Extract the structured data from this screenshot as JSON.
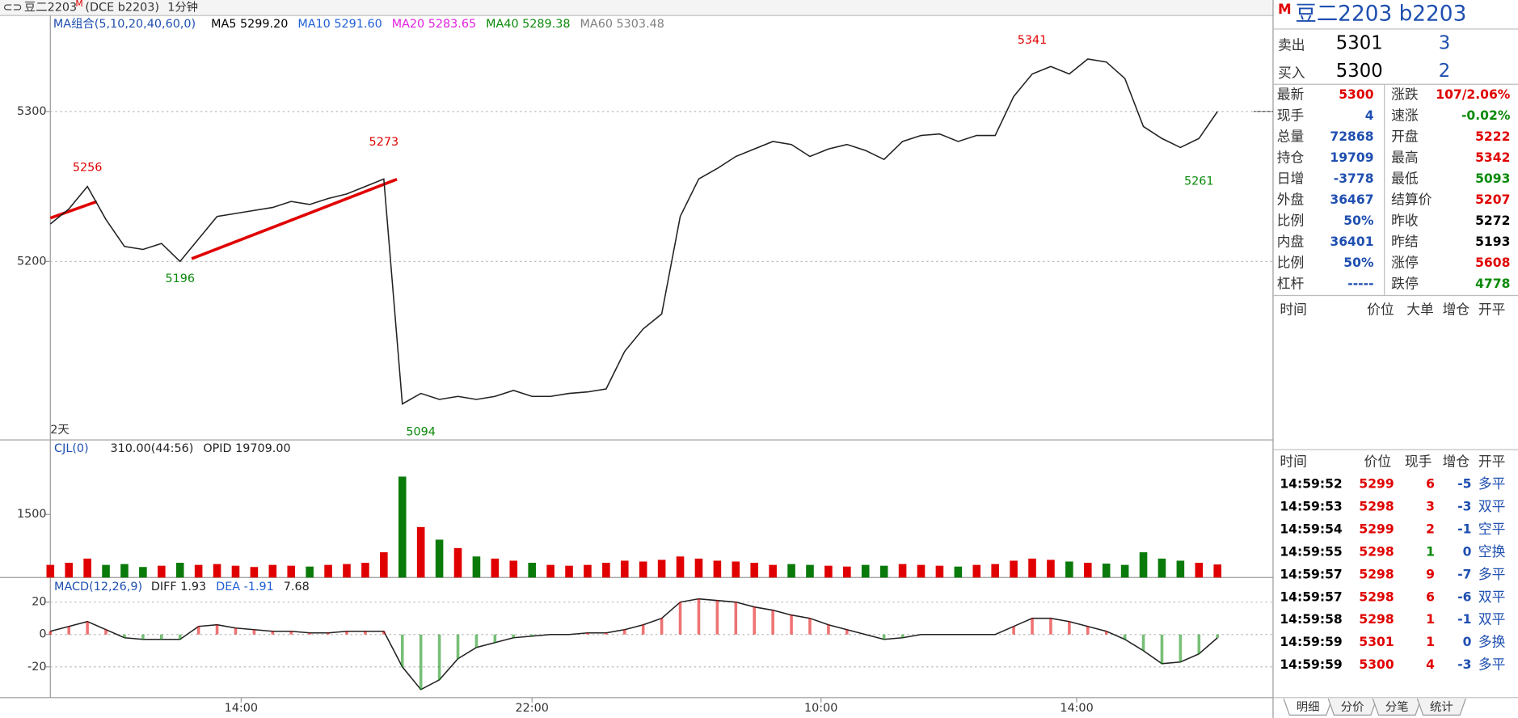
{
  "header": {
    "title": "豆二2203",
    "marker": "M",
    "exchange": "(DCE b2203)",
    "period": "1分钟"
  },
  "ma_legend": {
    "name": "MA组合(5,10,20,40,60,0)",
    "items": [
      {
        "text": "MA5 5299.20",
        "color": "#000000"
      },
      {
        "text": "MA10 5291.60",
        "color": "#1f5fd6"
      },
      {
        "text": "MA20 5283.65",
        "color": "#e020e0"
      },
      {
        "text": "MA40 5289.38",
        "color": "#0a8a0a"
      },
      {
        "text": "MA60 5303.48",
        "color": "#808080"
      }
    ]
  },
  "days_label": "2天",
  "chart_data": [
    {
      "type": "line",
      "name": "price",
      "color": "#222222",
      "xlim": [
        0,
        66
      ],
      "ylim": [
        5081,
        5364
      ],
      "yticks": [
        5200,
        5300
      ],
      "grid": true,
      "xticks": [
        {
          "value": 10.3,
          "label": "14:00"
        },
        {
          "value": 26,
          "label": "22:00"
        },
        {
          "value": 41.6,
          "label": "10:00"
        },
        {
          "value": 55.4,
          "label": "14:00"
        }
      ],
      "values": [
        5225,
        5235,
        5250,
        5228,
        5210,
        5208,
        5212,
        5200,
        5215,
        5230,
        5232,
        5234,
        5236,
        5240,
        5238,
        5242,
        5245,
        5250,
        5255,
        5105,
        5112,
        5108,
        5110,
        5108,
        5110,
        5114,
        5110,
        5110,
        5112,
        5113,
        5115,
        5140,
        5155,
        5165,
        5230,
        5255,
        5262,
        5270,
        5275,
        5280,
        5278,
        5270,
        5275,
        5278,
        5274,
        5268,
        5280,
        5284,
        5285,
        5280,
        5284,
        5284,
        5310,
        5325,
        5330,
        5325,
        5335,
        5333,
        5322,
        5290,
        5282,
        5276,
        5282,
        5300
      ],
      "annotations": [
        {
          "x": 2,
          "value": 5256,
          "pos": "above",
          "color": "#e00000"
        },
        {
          "x": 7,
          "value": 5196,
          "pos": "below",
          "color": "#0a8a0a"
        },
        {
          "x": 18,
          "value": 5273,
          "pos": "above",
          "color": "#e00000"
        },
        {
          "x": 20,
          "value": 5094,
          "pos": "below",
          "color": "#0a8a0a"
        },
        {
          "x": 53,
          "value": 5341,
          "pos": "above",
          "color": "#e00000"
        },
        {
          "x": 62,
          "value": 5261,
          "pos": "below",
          "color": "#0a8a0a"
        }
      ]
    },
    {
      "type": "bar",
      "name": "CJL(0)",
      "legend": [
        "310.00(44:56)",
        "OPID 19709.00"
      ],
      "xlim": [
        0,
        66
      ],
      "ylim": [
        0,
        3250
      ],
      "yticks": [
        1500
      ],
      "up_color": "#e00000",
      "down_color": "#0a7a0a",
      "values": [
        300,
        350,
        450,
        300,
        320,
        250,
        280,
        350,
        300,
        320,
        280,
        250,
        300,
        280,
        260,
        300,
        320,
        350,
        600,
        2400,
        1200,
        900,
        700,
        500,
        450,
        400,
        350,
        300,
        280,
        300,
        350,
        400,
        380,
        420,
        500,
        450,
        400,
        380,
        350,
        300,
        320,
        300,
        280,
        260,
        300,
        280,
        320,
        300,
        280,
        260,
        300,
        320,
        400,
        450,
        420,
        380,
        350,
        330,
        300,
        600,
        450,
        400,
        350,
        310
      ]
    },
    {
      "type": "line",
      "name": "MACD(12,26,9)",
      "legend": [
        "DIFF 1.93",
        "DEA -1.91",
        "7.68"
      ],
      "color": "#222222",
      "xlim": [
        0,
        66
      ],
      "ylim": [
        -39,
        34
      ],
      "yticks": [
        20,
        0,
        -20
      ],
      "grid": true,
      "values": [
        2,
        5,
        8,
        3,
        -2,
        -3,
        -3,
        -3,
        5,
        6,
        4,
        3,
        2,
        2,
        1,
        1,
        2,
        2,
        2,
        -20,
        -34,
        -28,
        -15,
        -8,
        -5,
        -2,
        -1,
        0,
        0,
        1,
        1,
        3,
        6,
        10,
        20,
        22,
        21,
        20,
        17,
        15,
        12,
        10,
        6,
        3,
        0,
        -3,
        -2,
        0,
        0,
        0,
        0,
        0,
        5,
        10,
        10,
        8,
        5,
        2,
        -3,
        -10,
        -18,
        -17,
        -12,
        -2
      ]
    }
  ],
  "panel": {
    "title": "豆二2203  b2203",
    "marker": "M",
    "orders": [
      {
        "label": "卖出",
        "price": "5301",
        "qty": "3"
      },
      {
        "label": "买入",
        "price": "5300",
        "qty": "2"
      }
    ],
    "quotes": [
      [
        {
          "label": "最新",
          "value": "5300",
          "color": "#e00000"
        },
        {
          "label": "涨跌",
          "value": "107/2.06%",
          "color": "#e00000"
        }
      ],
      [
        {
          "label": "现手",
          "value": "4",
          "color": "#1f4fb0"
        },
        {
          "label": "速涨",
          "value": "-0.02%",
          "color": "#0a8a0a"
        }
      ],
      [
        {
          "label": "总量",
          "value": "72868",
          "color": "#1f4fb0"
        },
        {
          "label": "开盘",
          "value": "5222",
          "color": "#e00000"
        }
      ],
      [
        {
          "label": "持仓",
          "value": "19709",
          "color": "#1f4fb0"
        },
        {
          "label": "最高",
          "value": "5342",
          "color": "#e00000"
        }
      ],
      [
        {
          "label": "日增",
          "value": "-3778",
          "color": "#1f4fb0"
        },
        {
          "label": "最低",
          "value": "5093",
          "color": "#0a8a0a"
        }
      ],
      [
        {
          "label": "外盘",
          "value": "36467",
          "color": "#1f4fb0"
        },
        {
          "label": "结算价",
          "value": "5207",
          "color": "#e00000"
        }
      ],
      [
        {
          "label": "比例",
          "value": "50%",
          "color": "#1f4fb0"
        },
        {
          "label": "昨收",
          "value": "5272",
          "color": "#000000"
        }
      ],
      [
        {
          "label": "内盘",
          "value": "36401",
          "color": "#1f4fb0"
        },
        {
          "label": "昨结",
          "value": "5193",
          "color": "#000000"
        }
      ],
      [
        {
          "label": "比例",
          "value": "50%",
          "color": "#1f4fb0"
        },
        {
          "label": "涨停",
          "value": "5608",
          "color": "#e00000"
        }
      ],
      [
        {
          "label": "杠杆",
          "value": "-----",
          "color": "#1f4fb0"
        },
        {
          "label": "跌停",
          "value": "4778",
          "color": "#0a8a0a"
        }
      ]
    ],
    "big_header": [
      "时间",
      "价位",
      "大单",
      "增仓",
      "开平"
    ],
    "tick_header": [
      "时间",
      "价位",
      "现手",
      "增仓",
      "开平"
    ],
    "ticks": [
      {
        "time": "14:59:52",
        "price": "5299",
        "vol": "6",
        "chg": "-5",
        "kind": "多平",
        "vol_color": "#e00000"
      },
      {
        "time": "14:59:53",
        "price": "5298",
        "vol": "3",
        "chg": "-3",
        "kind": "双平",
        "vol_color": "#e00000"
      },
      {
        "time": "14:59:54",
        "price": "5299",
        "vol": "2",
        "chg": "-1",
        "kind": "空平",
        "vol_color": "#e00000"
      },
      {
        "time": "14:59:55",
        "price": "5298",
        "vol": "1",
        "chg": "0",
        "kind": "空换",
        "vol_color": "#0a8a0a"
      },
      {
        "time": "14:59:57",
        "price": "5298",
        "vol": "9",
        "chg": "-7",
        "kind": "多平",
        "vol_color": "#e00000"
      },
      {
        "time": "14:59:57",
        "price": "5298",
        "vol": "6",
        "chg": "-6",
        "kind": "双平",
        "vol_color": "#e00000"
      },
      {
        "time": "14:59:58",
        "price": "5298",
        "vol": "1",
        "chg": "-1",
        "kind": "双平",
        "vol_color": "#e00000"
      },
      {
        "time": "14:59:59",
        "price": "5301",
        "vol": "1",
        "chg": "0",
        "kind": "多换",
        "vol_color": "#e00000"
      },
      {
        "time": "14:59:59",
        "price": "5300",
        "vol": "4",
        "chg": "-3",
        "kind": "多平",
        "vol_color": "#e00000"
      }
    ],
    "tabs": [
      "明细",
      "分价",
      "分笔",
      "统计"
    ]
  }
}
